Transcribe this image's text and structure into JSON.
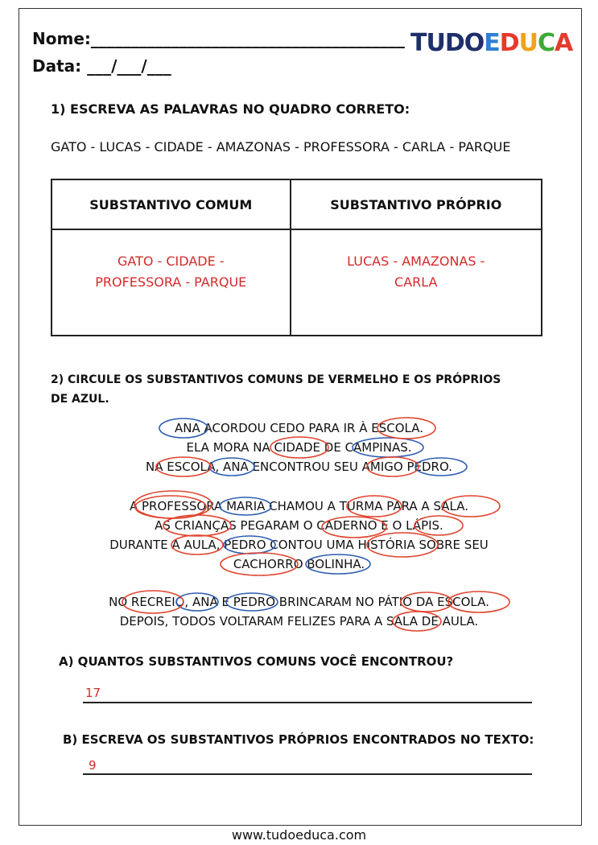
{
  "header": {
    "name_label": "Nome:_______________________________________",
    "date_label": "Data: ___/___/___",
    "logo": [
      "TUDO",
      "E",
      "D",
      "U",
      "C",
      "A"
    ]
  },
  "question1": {
    "title": "1) ESCREVA AS PALAVRAS NO QUADRO CORRETO:",
    "words": "GATO - LUCAS - CIDADE - AMAZONAS - PROFESSORA - CARLA - PARQUE",
    "table": {
      "headers": [
        "SUBSTANTIVO COMUM",
        "SUBSTANTIVO PRÓPRIO"
      ],
      "answers": [
        [
          "GATO - CIDADE -",
          "PROFESSORA - PARQUE"
        ],
        [
          "LUCAS -  AMAZONAS -",
          "CARLA"
        ]
      ]
    }
  },
  "question2": {
    "title": [
      "2) CIRCULE OS SUBSTANTIVOS COMUNS DE VERMELHO E OS PRÓPRIOS",
      "DE AZUL."
    ],
    "text": [
      [
        "ANA ACORDOU CEDO PARA IR À ESCOLA.",
        "ELA MORA NA CIDADE DE CAMPINAS.",
        "NA ESCOLA, ANA ENCONTROU SEU AMIGO PEDRO."
      ],
      [
        "A PROFESSORA MARIA CHAMOU A TURMA PARA A SALA.",
        "AS CRIANÇAS PEGARAM O CADERNO E O LÁPIS.",
        "DURANTE A AULA, PEDRO CONTOU UMA HISTÓRIA SOBRE SEU",
        "CACHORRO BOLINHA."
      ],
      [
        "NO RECREIO, ANA E PEDRO BRINCARAM NO PÁTIO DA ESCOLA.",
        "DEPOIS, TODOS VOLTARAM FELIZES PARA A SALA DE AULA."
      ]
    ]
  },
  "question_a": {
    "title": "A) QUANTOS SUBSTANTIVOS COMUNS VOCÊ ENCONTROU?",
    "answer": "17"
  },
  "question_b": {
    "title": "B) ESCREVA OS SUBSTANTIVOS PRÓPRIOS ENCONTRADOS NO TEXTO:",
    "answer": "9"
  },
  "footer": "www.tudoeduca.com"
}
